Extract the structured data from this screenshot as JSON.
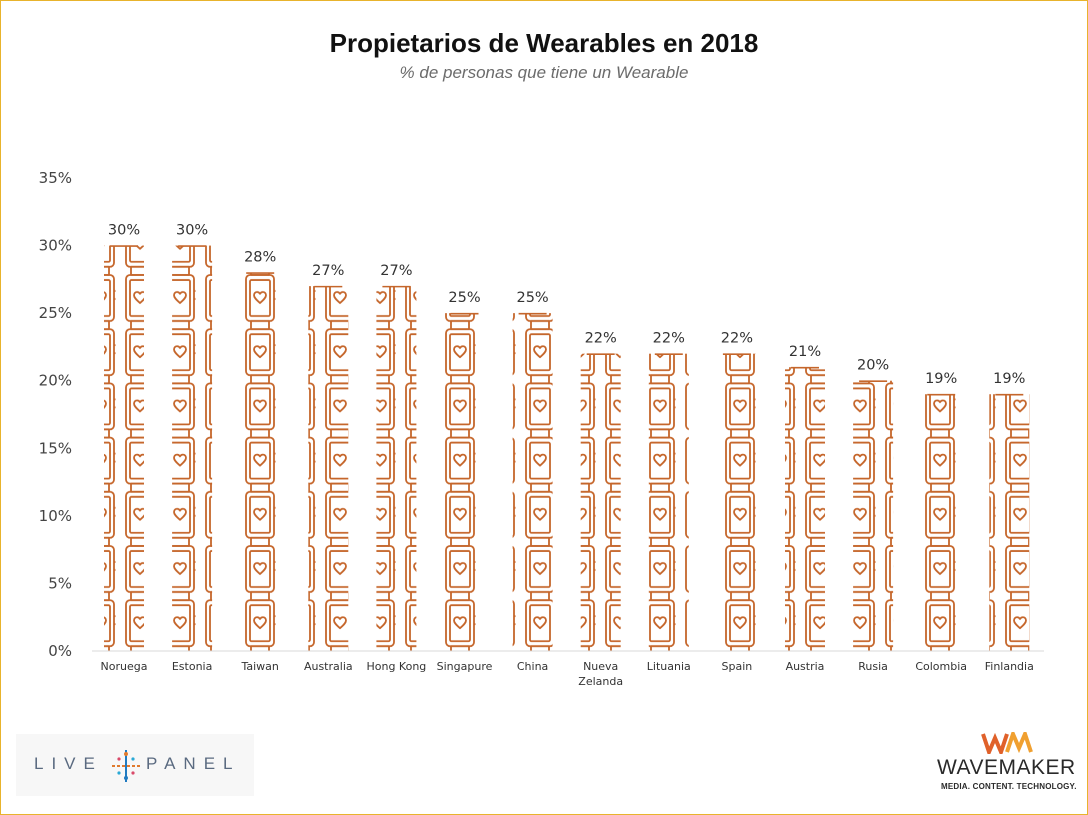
{
  "chart_data": {
    "type": "bar",
    "title": "Propietarios de Wearables en 2018",
    "subtitle": "% de personas que tiene un Wearable",
    "categories": [
      [
        "Noruega"
      ],
      [
        "Estonia"
      ],
      [
        "Taiwan"
      ],
      [
        "Australia"
      ],
      [
        "Hong Kong"
      ],
      [
        "Singapure"
      ],
      [
        "China"
      ],
      [
        "Nueva",
        "Zelanda"
      ],
      [
        "Lituania"
      ],
      [
        "Spain"
      ],
      [
        "Austria"
      ],
      [
        "Rusia"
      ],
      [
        "Colombia"
      ],
      [
        "Finlandia"
      ]
    ],
    "values": [
      30,
      30,
      28,
      27,
      27,
      25,
      25,
      22,
      22,
      22,
      21,
      20,
      19,
      19
    ],
    "value_labels": [
      "30%",
      "30%",
      "28%",
      "27%",
      "27%",
      "25%",
      "25%",
      "22%",
      "22%",
      "22%",
      "21%",
      "20%",
      "19%",
      "19%"
    ],
    "ylim": [
      0,
      35
    ],
    "yticks": [
      0,
      5,
      10,
      15,
      20,
      25,
      30,
      35
    ],
    "ytick_labels": [
      "0%",
      "5%",
      "10%",
      "15%",
      "20%",
      "25%",
      "30%",
      "35%"
    ],
    "grid": false,
    "legend": "none",
    "bar_style": "stacked smartwatch pictograms",
    "bar_color": "#c5662b"
  },
  "logos": {
    "livepanel_left": "LIVE",
    "livepanel_right": "PANEL",
    "wavemaker_name": "WAVEMAKER",
    "wavemaker_tagline": "MEDIA. CONTENT. TECHNOLOGY."
  }
}
